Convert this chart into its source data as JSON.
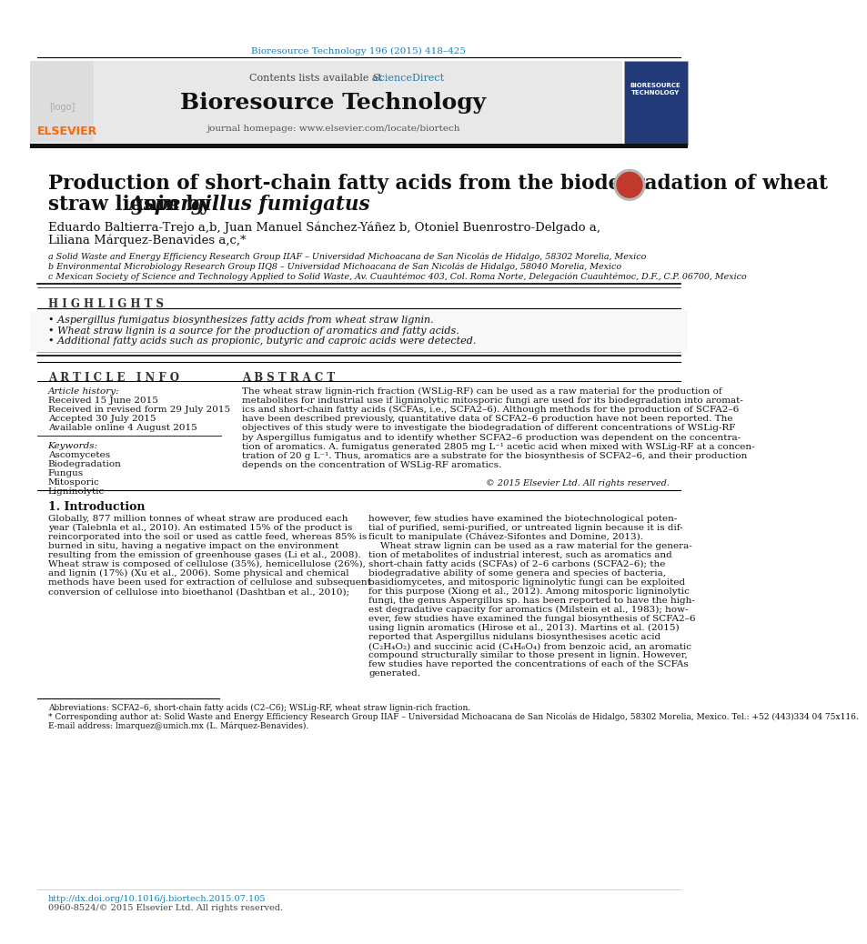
{
  "page_bg": "#ffffff",
  "top_journal_ref": "Bioresource Technology 196 (2015) 418–425",
  "journal_ref_color": "#1a7db5",
  "header_bg": "#e8e8e8",
  "header_text": "Contents lists available at",
  "sciencedirect_text": "ScienceDirect",
  "sciencedirect_color": "#1a7db5",
  "journal_name": "Bioresource Technology",
  "journal_homepage": "journal homepage: www.elsevier.com/locate/biortech",
  "title_line1": "Production of short-chain fatty acids from the biodegradation of wheat",
  "title_line2": "straw lignin by ",
  "title_line2_italic": "Aspergillus fumigatus",
  "authors": "Eduardo Baltierra-Trejo a,b, Juan Manuel Sánchez-Yáñez b, Otoniel Buenrostro-Delgado a,",
  "authors2": "Liliana Márquez-Benavides a,c,*",
  "affil_a": "a Solid Waste and Energy Efficiency Research Group IIAF – Universidad Michoacana de San Nicolás de Hidalgo, 58302 Morelia, Mexico",
  "affil_b": "b Environmental Microbiology Research Group IIQ8 – Universidad Michoacana de San Nicolás de Hidalgo, 58040 Morelia, Mexico",
  "affil_c": "c Mexican Society of Science and Technology Applied to Solid Waste, Av. Cuauhtémoc 403, Col. Roma Norte, Delegación Cuauhtémoc, D.F., C.P. 06700, Mexico",
  "highlights_title": "H I G H L I G H T S",
  "highlight1": "• Aspergillus fumigatus biosynthesizes fatty acids from wheat straw lignin.",
  "highlight2": "• Wheat straw lignin is a source for the production of aromatics and fatty acids.",
  "highlight3": "• Additional fatty acids such as propionic, butyric and caproic acids were detected.",
  "article_info_title": "A R T I C L E   I N F O",
  "abstract_title": "A B S T R A C T",
  "article_history_label": "Article history:",
  "received": "Received 15 June 2015",
  "received_revised": "Received in revised form 29 July 2015",
  "accepted": "Accepted 30 July 2015",
  "available": "Available online 4 August 2015",
  "keywords_label": "Keywords:",
  "kw1": "Ascomycetes",
  "kw2": "Biodegradation",
  "kw3": "Fungus",
  "kw4": "Mitosporic",
  "kw5": "Ligninolytic",
  "copyright": "© 2015 Elsevier Ltd. All rights reserved.",
  "intro_title": "1. Introduction",
  "footnote_abbrev": "Abbreviations: SCFA2–6, short-chain fatty acids (C2–C6); WSLig-RF, wheat straw lignin-rich fraction.",
  "footnote_corr": "* Corresponding author at: Solid Waste and Energy Efficiency Research Group IIAF – Universidad Michoacana de San Nicolás de Hidalgo, 58302 Morelia, Mexico. Tel.: +52 (443)334 04 75x116.",
  "footnote_email": "E-mail address: lmarquez@umich.mx (L. Márquez-Benavides).",
  "doi": "http://dx.doi.org/10.1016/j.biortech.2015.07.105",
  "issn": "0960-8524/© 2015 Elsevier Ltd. All rights reserved.",
  "abstract_lines": [
    "The wheat straw lignin-rich fraction (WSLig-RF) can be used as a raw material for the production of",
    "metabolites for industrial use if ligninolytic mitosporic fungi are used for its biodegradation into aromat-",
    "ics and short-chain fatty acids (SCFAs, i.e., SCFA2–6). Although methods for the production of SCFA2–6",
    "have been described previously, quantitative data of SCFA2–6 production have not been reported. The",
    "objectives of this study were to investigate the biodegradation of different concentrations of WSLig-RF",
    "by Aspergillus fumigatus and to identify whether SCFA2–6 production was dependent on the concentra-",
    "tion of aromatics. A. fumigatus generated 2805 mg L⁻¹ acetic acid when mixed with WSLig-RF at a concen-",
    "tration of 20 g L⁻¹. Thus, aromatics are a substrate for the biosynthesis of SCFA2–6, and their production",
    "depends on the concentration of WSLig-RF aromatics."
  ],
  "left_intro": [
    "Globally, 877 million tonnes of wheat straw are produced each",
    "year (Talebnla et al., 2010). An estimated 15% of the product is",
    "reincorporated into the soil or used as cattle feed, whereas 85% is",
    "burned in situ, having a negative impact on the environment",
    "resulting from the emission of greenhouse gases (Li et al., 2008).",
    "Wheat straw is composed of cellulose (35%), hemicellulose (26%),",
    "and lignin (17%) (Xu et al., 2006). Some physical and chemical",
    "methods have been used for extraction of cellulose and subsequent",
    "conversion of cellulose into bioethanol (Dashtban et al., 2010);"
  ],
  "right_intro": [
    "however, few studies have examined the biotechnological poten-",
    "tial of purified, semi-purified, or untreated lignin because it is dif-",
    "ficult to manipulate (Chávez-Sifontes and Domine, 2013).",
    "    Wheat straw lignin can be used as a raw material for the genera-",
    "tion of metabolites of industrial interest, such as aromatics and",
    "short-chain fatty acids (SCFAs) of 2–6 carbons (SCFA2–6); the",
    "biodegradative ability of some genera and species of bacteria,",
    "basidiomycetes, and mitosporic ligninolytic fungi can be exploited",
    "for this purpose (Xiong et al., 2012). Among mitosporic ligninolytic",
    "fungi, the genus Aspergillus sp. has been reported to have the high-",
    "est degradative capacity for aromatics (Milstein et al., 1983); how-",
    "ever, few studies have examined the fungal biosynthesis of SCFA2–6",
    "using lignin aromatics (Hirose et al., 2013). Martins et al. (2015)",
    "reported that Aspergillus nidulans biosynthesises acetic acid",
    "(C₂H₄O₂) and succinic acid (C₄H₆O₄) from benzoic acid, an aromatic",
    "compound structurally similar to those present in lignin. However,",
    "few studies have reported the concentrations of each of the SCFAs",
    "generated."
  ]
}
